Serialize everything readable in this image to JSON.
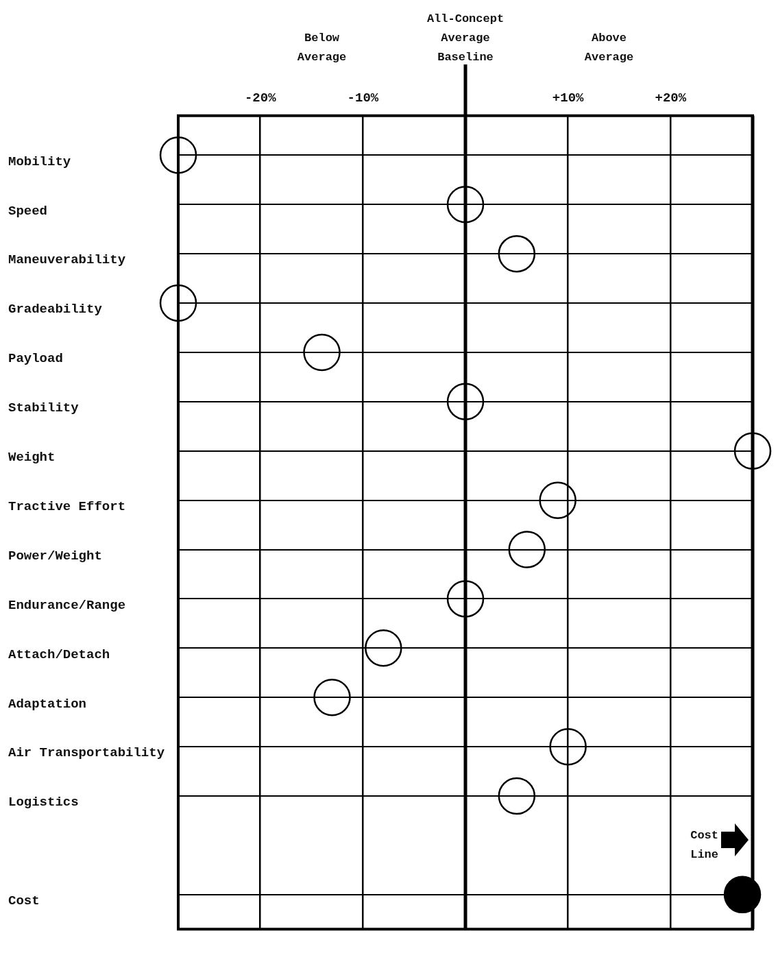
{
  "chart_data": {
    "type": "scatter",
    "orientation": "horizontal",
    "categories": [
      "Mobility",
      "Speed",
      "Maneuverability",
      "Gradeability",
      "Payload",
      "Stability",
      "Weight",
      "Tractive Effort",
      "Power/Weight",
      "Endurance/Range",
      "Attach/Detach",
      "Adaptation",
      "Air Transportability",
      "Logistics",
      null,
      "Cost"
    ],
    "series": [
      {
        "color": "#000000",
        "values": [
          -28,
          0,
          5,
          -28,
          -14,
          0,
          28,
          9,
          6,
          0,
          -8,
          -13,
          10,
          5,
          null,
          null
        ]
      },
      {
        "color": "#000000",
        "values": [
          null,
          null,
          null,
          null,
          null,
          null,
          null,
          null,
          null,
          null,
          null,
          null,
          null,
          null,
          null,
          27
        ]
      }
    ],
    "xlim": [
      -28,
      28
    ],
    "xticks": [
      {
        "value": -20,
        "label": "-20%"
      },
      {
        "value": -10,
        "label": "-10%"
      },
      {
        "value": 0,
        "label": null
      },
      {
        "value": 10,
        "label": "+10%"
      },
      {
        "value": 20,
        "label": "+20%"
      }
    ],
    "ref_lines": [
      {
        "axis": "x",
        "value": 0,
        "label": "All-Concept Average Baseline"
      },
      {
        "axis": "x",
        "value": 28,
        "label": "Cost Line"
      }
    ],
    "annotations": [
      "Below Average",
      "Above Average"
    ],
    "grid": true,
    "legend": false,
    "marker": "circle"
  }
}
